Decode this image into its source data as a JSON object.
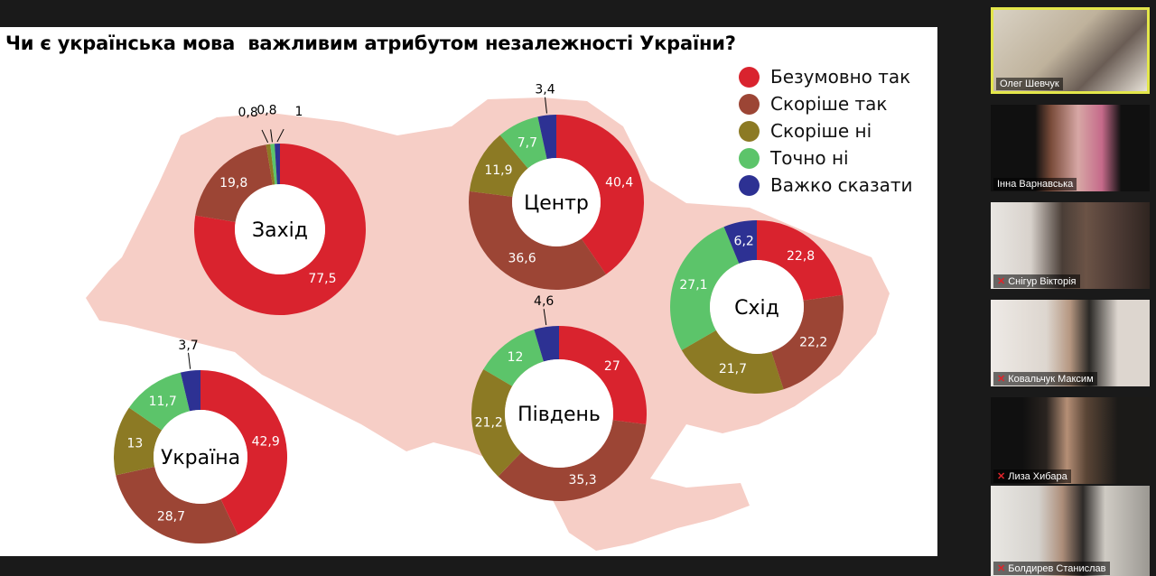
{
  "slide": {
    "title": "Чи є українська мова  важливим атрибутом незалежності України?",
    "legend": [
      {
        "label": "Безумовно так",
        "color": "#d9232e"
      },
      {
        "label": "Скоріше так",
        "color": "#9c4535"
      },
      {
        "label": "Скоріше ні",
        "color": "#8c7a24"
      },
      {
        "label": "Точно ні",
        "color": "#5cc46a"
      },
      {
        "label": "Важко сказати",
        "color": "#2d3193"
      }
    ],
    "map_color": "#f6cec6"
  },
  "chart_data": [
    {
      "type": "pie",
      "region": "Захід",
      "categories": [
        "Безумовно так",
        "Скоріше так",
        "Скоріше ні",
        "Точно ні",
        "Важко сказати"
      ],
      "values": [
        77.5,
        19.8,
        0.8,
        0.8,
        1
      ],
      "labels": [
        "77,5",
        "19,8",
        "0,8",
        "0,8",
        "1"
      ]
    },
    {
      "type": "pie",
      "region": "Центр",
      "categories": [
        "Безумовно так",
        "Скоріше так",
        "Скоріше ні",
        "Точно ні",
        "Важко сказати"
      ],
      "values": [
        40.4,
        36.6,
        11.9,
        7.7,
        3.4
      ],
      "labels": [
        "40,4",
        "36,6",
        "11,9",
        "7,7",
        "3,4"
      ]
    },
    {
      "type": "pie",
      "region": "Схід",
      "categories": [
        "Безумовно так",
        "Скоріше так",
        "Скоріше ні",
        "Точно ні",
        "Важко сказати"
      ],
      "values": [
        22.8,
        22.2,
        21.7,
        27.1,
        6.2
      ],
      "labels": [
        "22,8",
        "22,2",
        "21,7",
        "27,1",
        "6,2"
      ]
    },
    {
      "type": "pie",
      "region": "Південь",
      "categories": [
        "Безумовно так",
        "Скоріше так",
        "Скоріше ні",
        "Точно ні",
        "Важко сказати"
      ],
      "values": [
        27,
        35.3,
        21.2,
        12,
        4.6
      ],
      "labels": [
        "27",
        "35,3",
        "21,2",
        "12",
        "4,6"
      ]
    },
    {
      "type": "pie",
      "region": "Україна",
      "categories": [
        "Безумовно так",
        "Скоріше так",
        "Скоріше ні",
        "Точно ні",
        "Важко сказати"
      ],
      "values": [
        42.9,
        28.7,
        13,
        11.7,
        3.7
      ],
      "labels": [
        "42,9",
        "28,7",
        "13",
        "11,7",
        "3,7"
      ]
    }
  ],
  "participants": [
    {
      "name": "Олег Шевчук",
      "muted": false,
      "active": true
    },
    {
      "name": "Інна Варнавська",
      "muted": false,
      "active": false
    },
    {
      "name": "Снігур Вікторія",
      "muted": true,
      "active": false
    },
    {
      "name": "Ковальчук Максим",
      "muted": true,
      "active": false
    },
    {
      "name": "Лиза Хибара",
      "muted": true,
      "active": false
    },
    {
      "name": "Болдирев Станислав",
      "muted": true,
      "active": false
    }
  ]
}
